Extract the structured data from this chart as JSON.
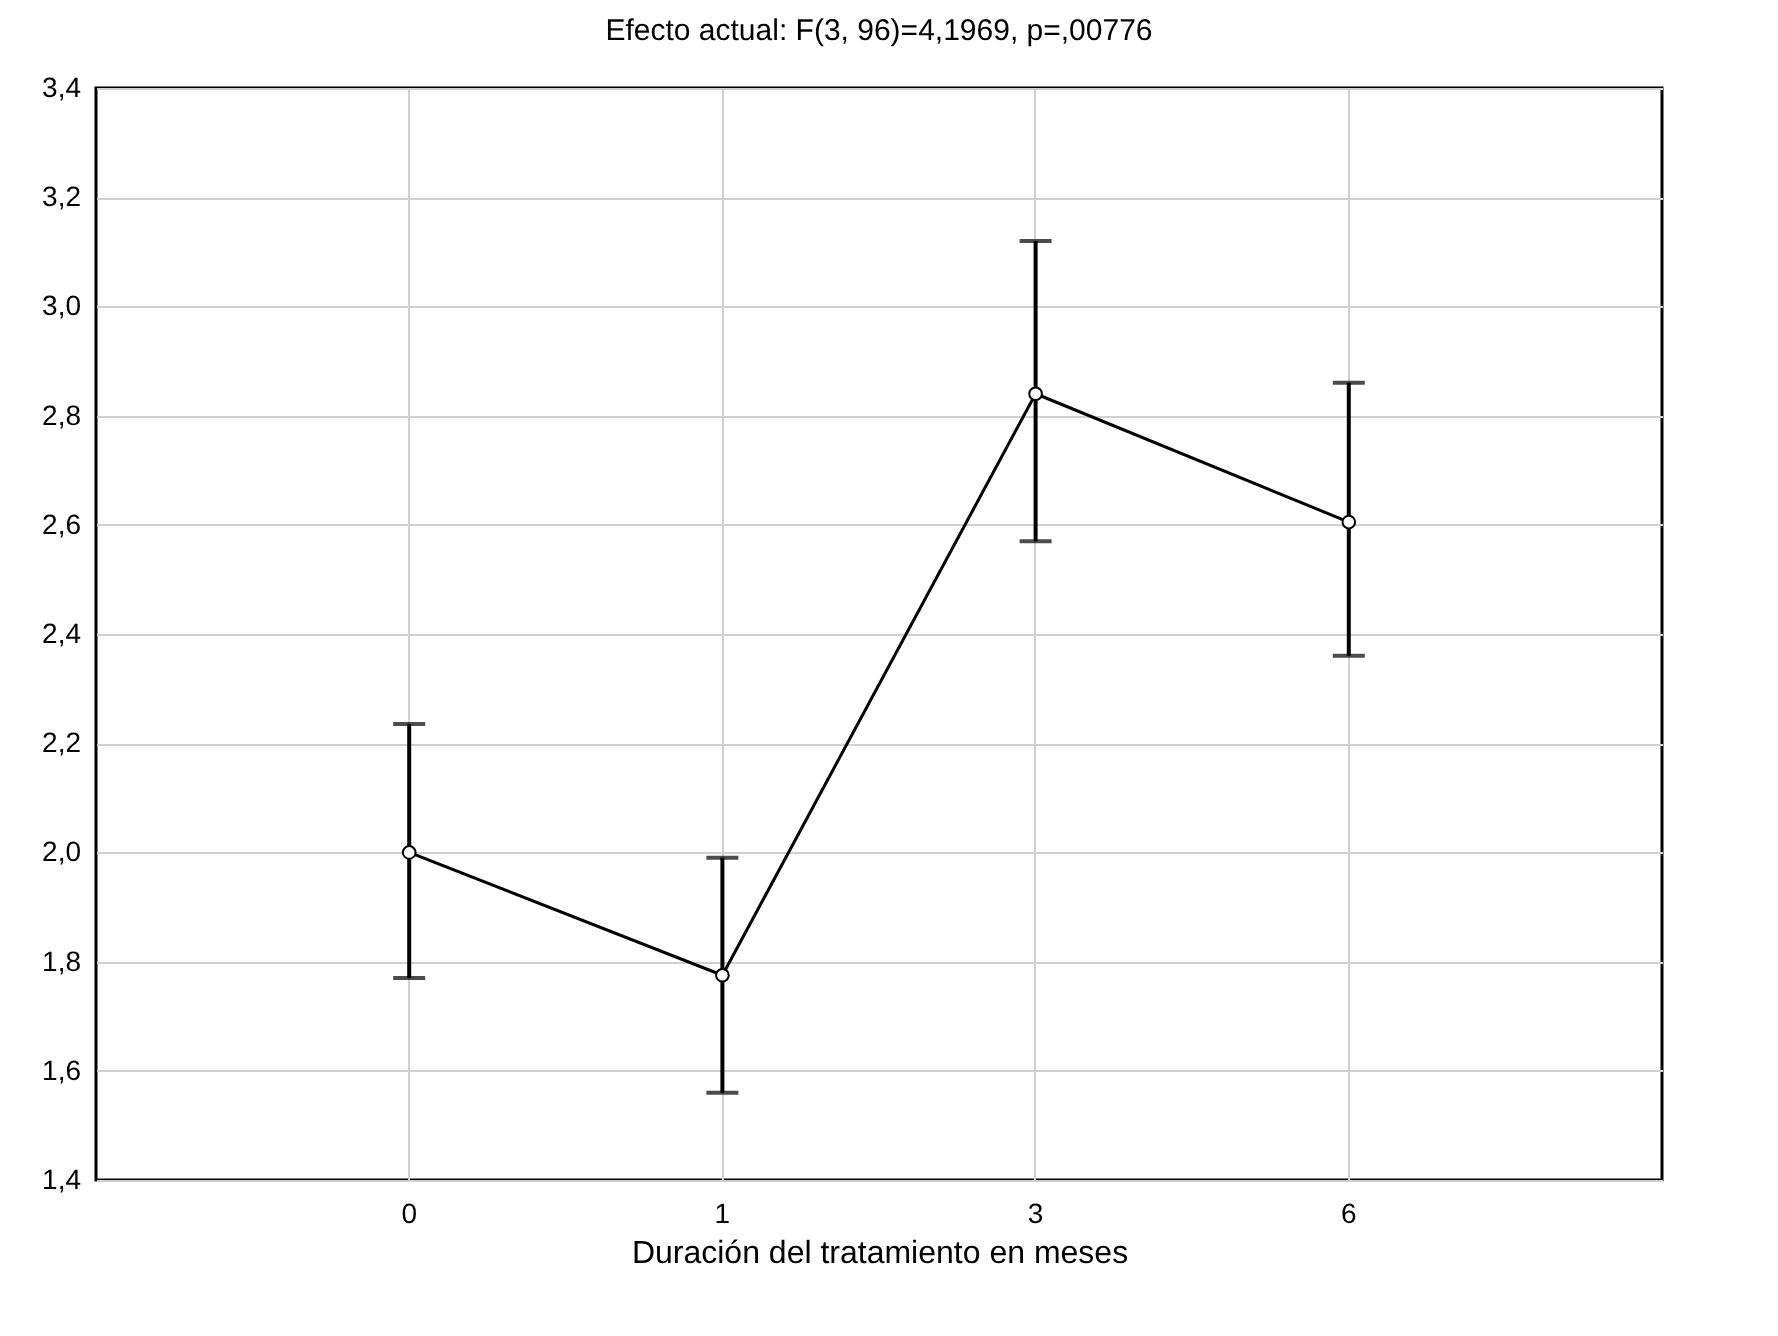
{
  "chart_data": {
    "type": "line",
    "title": "Efecto actual: F(3, 96)=4,1969, p=,00776",
    "xlabel": "Duración del tratamiento en meses",
    "categories": [
      "0",
      "1",
      "3",
      "6"
    ],
    "values": [
      2.0,
      1.775,
      2.84,
      2.605
    ],
    "errors": [
      [
        1.77,
        2.235
      ],
      [
        1.56,
        1.99
      ],
      [
        2.57,
        3.12
      ],
      [
        2.36,
        2.86
      ]
    ],
    "color": "#000000",
    "marker": "circle",
    "grid": true,
    "ylim": [
      1.4,
      3.4
    ],
    "yticks": [
      {
        "value": 1.4,
        "label": "1,4"
      },
      {
        "value": 1.6,
        "label": "1,6"
      },
      {
        "value": 1.8,
        "label": "1,8"
      },
      {
        "value": 2.0,
        "label": "2,0"
      },
      {
        "value": 2.2,
        "label": "2,2"
      },
      {
        "value": 2.4,
        "label": "2,4"
      },
      {
        "value": 2.6,
        "label": "2,6"
      },
      {
        "value": 2.8,
        "label": "2,8"
      },
      {
        "value": 3.0,
        "label": "3,0"
      },
      {
        "value": 3.2,
        "label": "3,2"
      },
      {
        "value": 3.4,
        "label": "3,4"
      }
    ]
  }
}
